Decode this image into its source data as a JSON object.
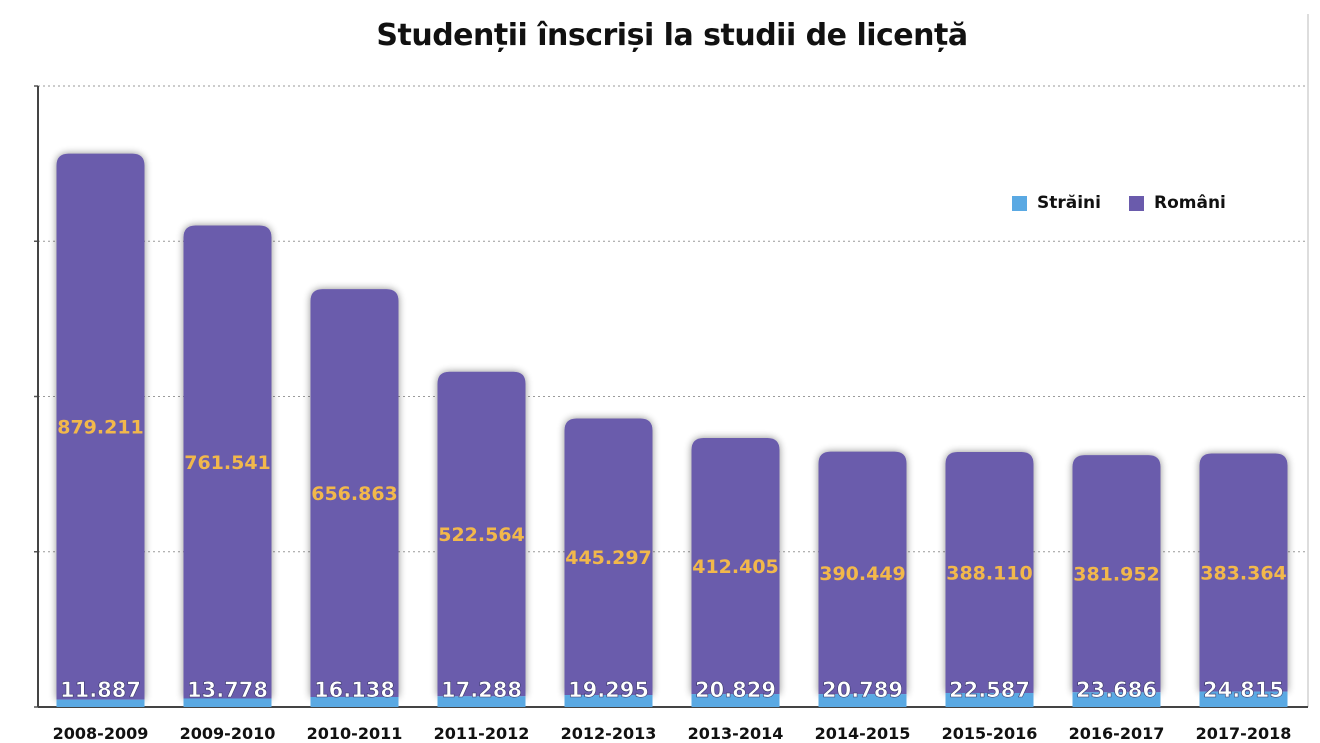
{
  "chart_data": {
    "type": "bar",
    "stacked": true,
    "title": "Studenții înscriși la studii de licență",
    "categories": [
      "2008-2009",
      "2009-2010",
      "2010-2011",
      "2011-2012",
      "2012-2013",
      "2013-2014",
      "2014-2015",
      "2015-2016",
      "2016-2017",
      "2017-2018"
    ],
    "series": [
      {
        "name": "Străini",
        "color": "#5aa9e3",
        "values": [
          11887,
          13778,
          16138,
          17288,
          19295,
          20829,
          20789,
          22587,
          23686,
          24815
        ],
        "labels": [
          "11.887",
          "13.778",
          "16.138",
          "17.288",
          "19.295",
          "20.829",
          "20.789",
          "22.587",
          "23.686",
          "24.815"
        ]
      },
      {
        "name": "Români",
        "color": "#6a5bac",
        "values": [
          879211,
          761541,
          656863,
          522564,
          445297,
          412405,
          390449,
          388110,
          381952,
          383364
        ],
        "labels": [
          "879.211",
          "761.541",
          "656.863",
          "522.564",
          "445.297",
          "412.405",
          "390.449",
          "388.110",
          "381.952",
          "383.364"
        ]
      }
    ],
    "ylim": [
      0,
      1000000
    ],
    "grid": true,
    "legend_position": "top-right"
  }
}
